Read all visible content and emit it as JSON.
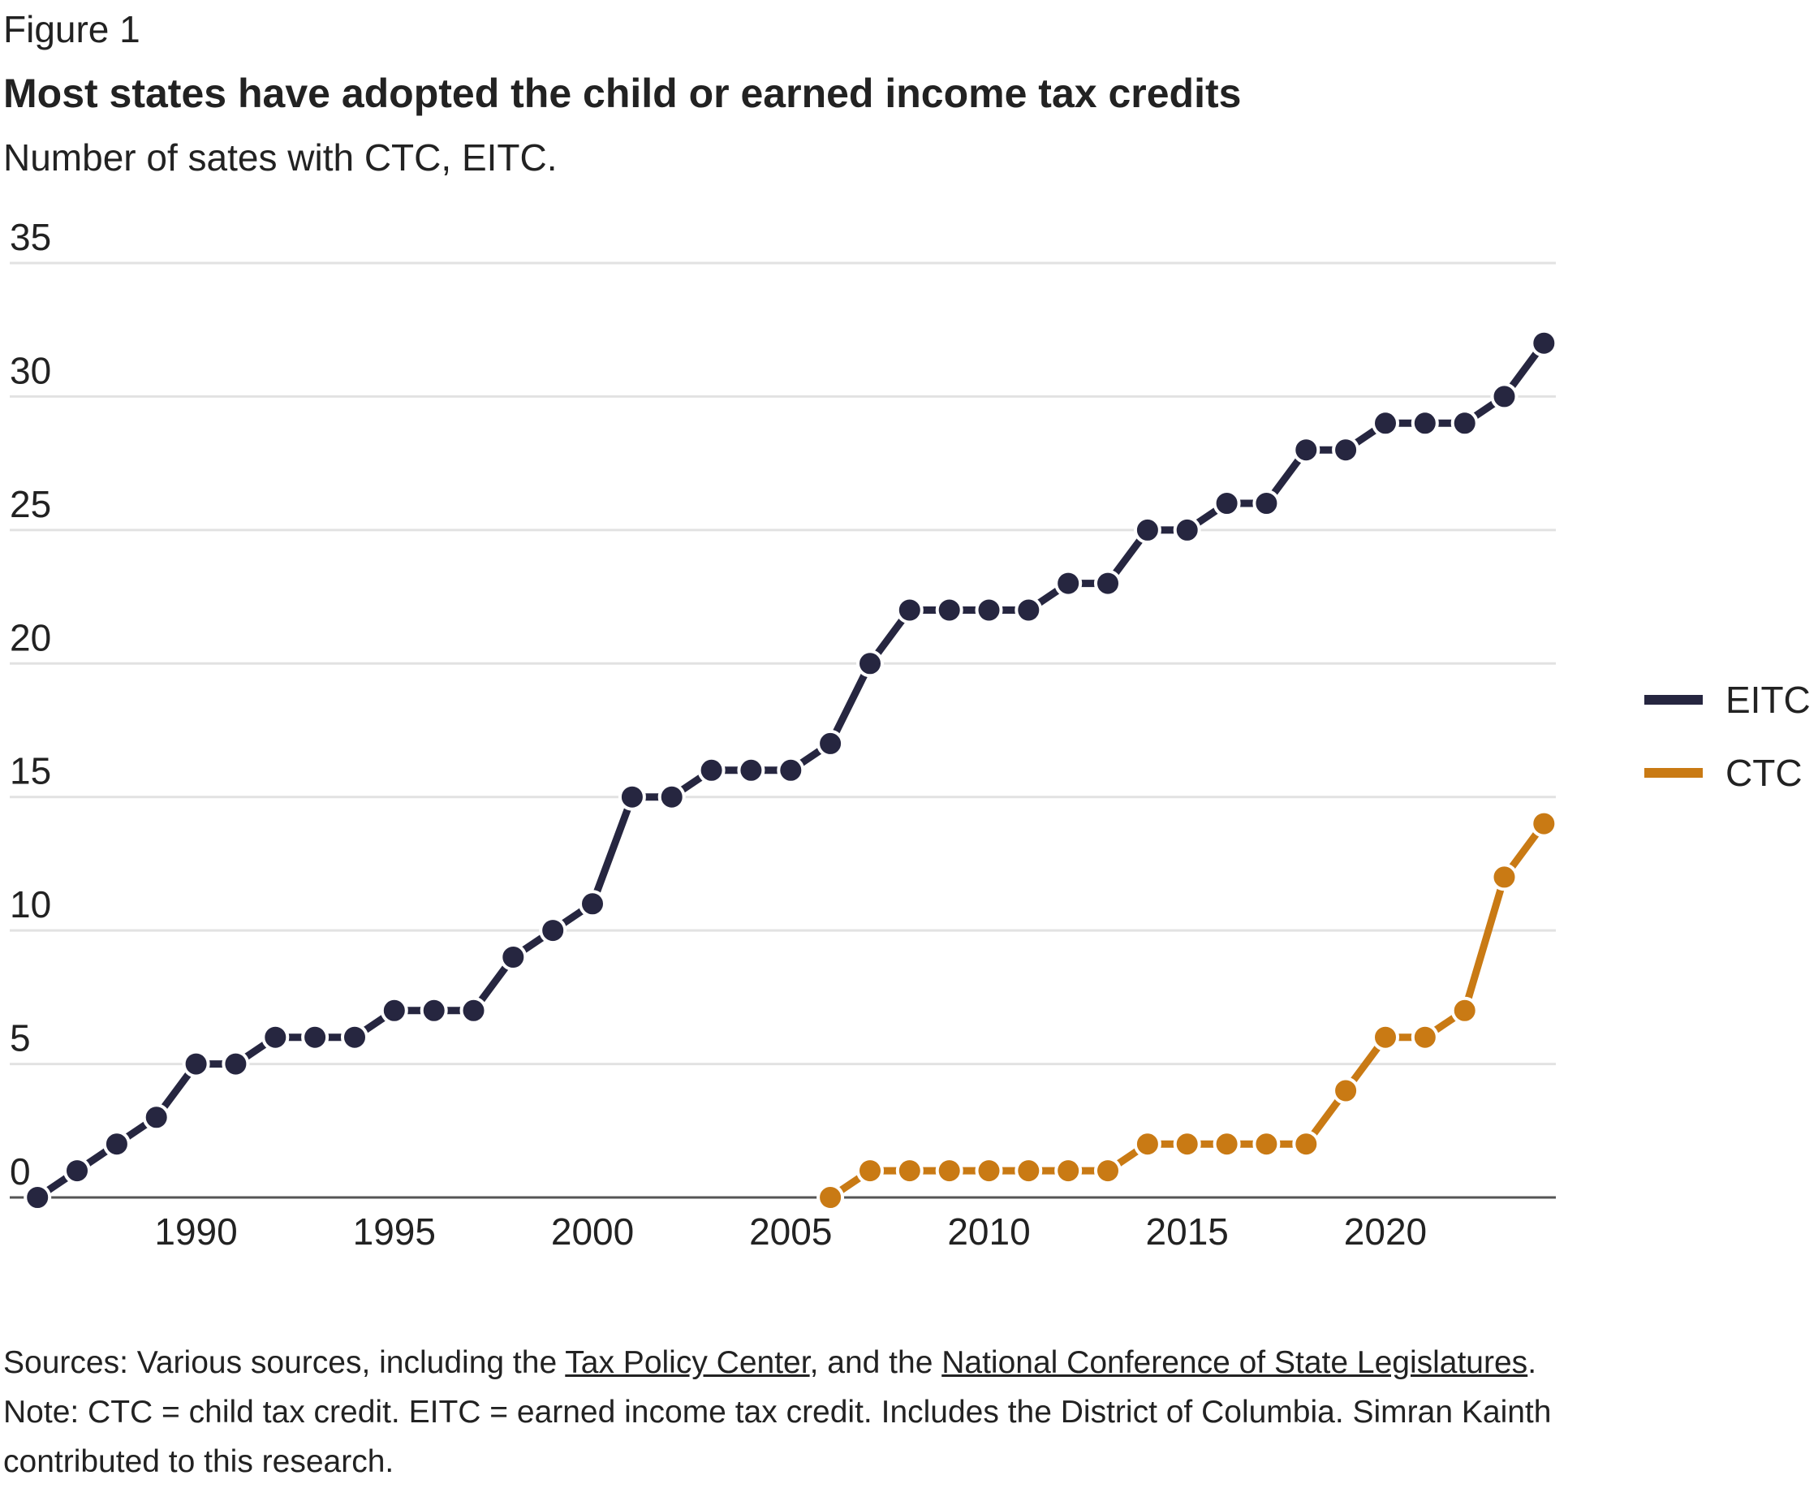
{
  "figure_label": "Figure 1",
  "colors": {
    "eitc": "#262640",
    "ctc": "#c97a14",
    "grid": "#e2e2e2",
    "axis": "#555555",
    "text": "#222222"
  },
  "legend": {
    "items": [
      {
        "label": "EITC",
        "color": "#262640"
      },
      {
        "label": "CTC",
        "color": "#c97a14"
      }
    ]
  },
  "footer": {
    "sources_prefix": "Sources: Various sources, including the ",
    "link1": "Tax Policy Center",
    "sources_middle": ", and the ",
    "link2": "National Conference of State Legislatures",
    "sources_suffix": ".",
    "note": "Note: CTC = child tax credit. EITC = earned income tax credit. Includes the District of Columbia. Simran Kainth contributed to this research."
  },
  "chart_data": {
    "type": "line",
    "title": "Most states have adopted the child or earned income tax credits",
    "subtitle": "Number of sates with CTC, EITC.",
    "xlabel": "",
    "ylabel": "",
    "xlim": [
      1985.3,
      2024.3
    ],
    "ylim": [
      0,
      35
    ],
    "yticks": [
      0,
      5,
      10,
      15,
      20,
      25,
      30,
      35
    ],
    "xticks": [
      1990,
      1995,
      2000,
      2005,
      2010,
      2015,
      2020
    ],
    "grid": true,
    "legend_position": "right",
    "series": [
      {
        "name": "EITC",
        "color": "#262640",
        "x": [
          1986,
          1987,
          1988,
          1989,
          1990,
          1991,
          1992,
          1993,
          1994,
          1995,
          1996,
          1997,
          1998,
          1999,
          2000,
          2001,
          2002,
          2003,
          2004,
          2005,
          2006,
          2007,
          2008,
          2009,
          2010,
          2011,
          2012,
          2013,
          2014,
          2015,
          2016,
          2017,
          2018,
          2019,
          2020,
          2021,
          2022,
          2023,
          2024
        ],
        "y": [
          0,
          1,
          2,
          3,
          5,
          5,
          6,
          6,
          6,
          7,
          7,
          7,
          9,
          10,
          11,
          15,
          15,
          16,
          16,
          16,
          17,
          20,
          22,
          22,
          22,
          22,
          23,
          23,
          25,
          25,
          26,
          26,
          28,
          28,
          29,
          29,
          29,
          30,
          32
        ]
      },
      {
        "name": "CTC",
        "color": "#c97a14",
        "x": [
          2006,
          2007,
          2008,
          2009,
          2010,
          2011,
          2012,
          2013,
          2014,
          2015,
          2016,
          2017,
          2018,
          2019,
          2020,
          2021,
          2022,
          2023,
          2024
        ],
        "y": [
          0,
          1,
          1,
          1,
          1,
          1,
          1,
          1,
          2,
          2,
          2,
          2,
          2,
          4,
          6,
          6,
          7,
          12,
          14
        ]
      }
    ]
  }
}
